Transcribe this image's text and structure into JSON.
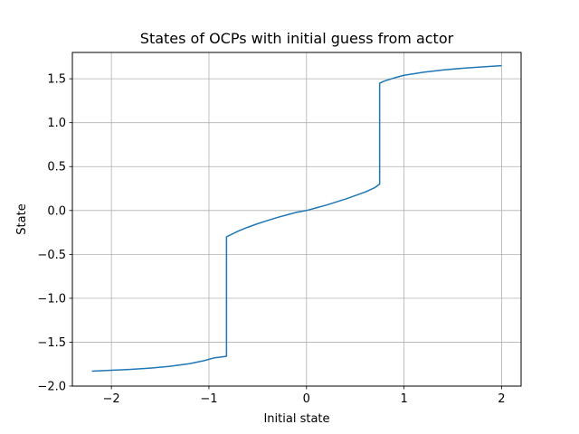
{
  "chart_data": {
    "type": "line",
    "title": "States of OCPs with initial guess from actor",
    "xlabel": "Initial state",
    "ylabel": "State",
    "xlim": [
      -2.4,
      2.2
    ],
    "ylim": [
      -2.0,
      1.8
    ],
    "grid": true,
    "x_ticks": [
      -2,
      -1,
      0,
      1,
      2
    ],
    "x_tick_labels": [
      "−2",
      "−1",
      "0",
      "1",
      "2"
    ],
    "y_ticks": [
      -2.0,
      -1.5,
      -1.0,
      -0.5,
      0.0,
      0.5,
      1.0,
      1.5
    ],
    "y_tick_labels": [
      "−2.0",
      "−1.5",
      "−1.0",
      "−0.5",
      "0.0",
      "0.5",
      "1.0",
      "1.5"
    ],
    "series": [
      {
        "color": "#1f77b4",
        "x": [
          -2.2,
          -2.0,
          -1.8,
          -1.6,
          -1.4,
          -1.2,
          -1.05,
          -0.95,
          -0.85,
          -0.82,
          -0.82,
          -0.7,
          -0.6,
          -0.5,
          -0.4,
          -0.3,
          -0.2,
          -0.1,
          0.0,
          0.1,
          0.2,
          0.3,
          0.4,
          0.5,
          0.6,
          0.7,
          0.75,
          0.75,
          0.8,
          0.9,
          1.0,
          1.2,
          1.4,
          1.6,
          1.8,
          2.0
        ],
        "y": [
          -1.83,
          -1.82,
          -1.81,
          -1.795,
          -1.775,
          -1.745,
          -1.71,
          -1.68,
          -1.665,
          -1.66,
          -0.3,
          -0.235,
          -0.19,
          -0.15,
          -0.115,
          -0.08,
          -0.05,
          -0.02,
          0.0,
          0.03,
          0.06,
          0.095,
          0.13,
          0.17,
          0.21,
          0.26,
          0.3,
          1.45,
          1.475,
          1.51,
          1.54,
          1.575,
          1.6,
          1.62,
          1.635,
          1.65
        ]
      }
    ]
  }
}
